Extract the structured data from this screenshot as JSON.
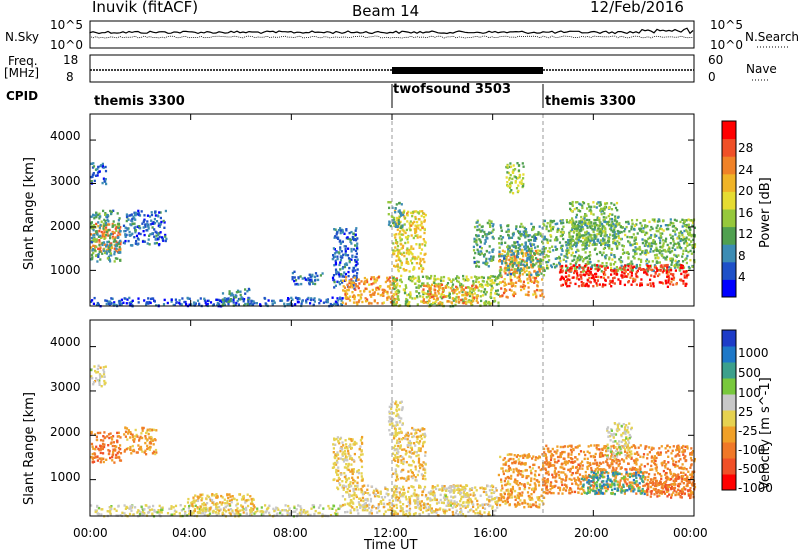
{
  "header": {
    "station": "Inuvik (fitACF)",
    "beam": "Beam 14",
    "date": "12/Feb/2016"
  },
  "top_panels": {
    "nsky_label": "N.Sky",
    "nsky_ticks": [
      "10^5",
      "10^0"
    ],
    "nsearch_label": "N.Search",
    "nsearch_ticks": [
      "10^5",
      "10^0"
    ],
    "freq_label_line1": "Freq.",
    "freq_label_line2": "[MHz]",
    "freq_ticks": [
      "18",
      "8"
    ],
    "nave_label": "Nave",
    "nave_ticks": [
      "60",
      "0"
    ],
    "cpid_label": "CPID"
  },
  "cpid_segments": [
    {
      "name": "themis 3300",
      "start_hour": 0,
      "end_hour": 12
    },
    {
      "name": "twofsound 3503",
      "start_hour": 12,
      "end_hour": 18
    },
    {
      "name": "themis 3300",
      "start_hour": 18,
      "end_hour": 24
    }
  ],
  "colors": {
    "power_scale": [
      "#0000ff",
      "#1e50c8",
      "#3c8cb4",
      "#50a050",
      "#96c83c",
      "#e6dc32",
      "#f0b428",
      "#f08228",
      "#f05028",
      "#ff0000"
    ],
    "velocity_scale": [
      "#1e3cc8",
      "#1e78c8",
      "#3ca08c",
      "#78c83c",
      "#c8c8c8",
      "#e6d250",
      "#f0a028",
      "#f07828",
      "#f05028",
      "#ff0000"
    ]
  },
  "chart_data": [
    {
      "type": "heatmap",
      "title": "Power",
      "ylabel": "Slant Range [km]",
      "xlabel": "",
      "x_range_hours": [
        0,
        24
      ],
      "ylim": [
        180,
        4600
      ],
      "y_ticks": [
        "1000",
        "2000",
        "3000",
        "4000"
      ],
      "colorbar_label": "Power [dB]",
      "colorbar_ticks": [
        "4",
        "8",
        "12",
        "16",
        "20",
        "24",
        "28"
      ],
      "colorbar_range": [
        0,
        31
      ],
      "regions": [
        {
          "t0": 0.0,
          "t1": 1.2,
          "r0": 1450,
          "r1": 2100,
          "level": 24
        },
        {
          "t0": 0.0,
          "t1": 1.2,
          "r0": 1200,
          "r1": 2400,
          "level": 10
        },
        {
          "t0": 0.0,
          "t1": 0.6,
          "r0": 3000,
          "r1": 3500,
          "level": 6
        },
        {
          "t0": 1.3,
          "t1": 3.0,
          "r0": 1600,
          "r1": 2400,
          "level": 6
        },
        {
          "t0": 0.0,
          "t1": 10.0,
          "r0": 200,
          "r1": 400,
          "level": 5
        },
        {
          "t0": 5.2,
          "t1": 6.3,
          "r0": 200,
          "r1": 600,
          "level": 8
        },
        {
          "t0": 8.0,
          "t1": 9.2,
          "r0": 700,
          "r1": 1000,
          "level": 6
        },
        {
          "t0": 9.6,
          "t1": 10.6,
          "r0": 600,
          "r1": 2000,
          "level": 6
        },
        {
          "t0": 10.0,
          "t1": 12.2,
          "r0": 250,
          "r1": 900,
          "level": 22
        },
        {
          "t0": 12.0,
          "t1": 13.3,
          "r0": 1000,
          "r1": 2400,
          "level": 18
        },
        {
          "t0": 11.8,
          "t1": 12.4,
          "r0": 2000,
          "r1": 2600,
          "level": 10
        },
        {
          "t0": 12.0,
          "t1": 16.2,
          "r0": 200,
          "r1": 900,
          "level": 14
        },
        {
          "t0": 13.2,
          "t1": 15.4,
          "r0": 250,
          "r1": 700,
          "level": 22
        },
        {
          "t0": 15.2,
          "t1": 16.0,
          "r0": 1100,
          "r1": 2200,
          "level": 10
        },
        {
          "t0": 16.2,
          "t1": 18.0,
          "r0": 400,
          "r1": 1500,
          "level": 22
        },
        {
          "t0": 16.2,
          "t1": 18.0,
          "r0": 900,
          "r1": 2100,
          "level": 10
        },
        {
          "t0": 18.0,
          "t1": 24.0,
          "r0": 1000,
          "r1": 2200,
          "level": 12
        },
        {
          "t0": 18.6,
          "t1": 23.8,
          "r0": 650,
          "r1": 1150,
          "level": 28
        },
        {
          "t0": 19.0,
          "t1": 21.0,
          "r0": 1600,
          "r1": 2600,
          "level": 12
        },
        {
          "t0": 16.5,
          "t1": 17.2,
          "r0": 2800,
          "r1": 3500,
          "level": 14
        }
      ]
    },
    {
      "type": "heatmap",
      "title": "Velocity",
      "ylabel": "Slant Range [km]",
      "xlabel": "Time UT",
      "x_range_hours": [
        0,
        24
      ],
      "x_ticks": [
        "00:00",
        "04:00",
        "08:00",
        "12:00",
        "16:00",
        "20:00",
        "00:00"
      ],
      "ylim": [
        180,
        4600
      ],
      "y_ticks": [
        "1000",
        "2000",
        "3000",
        "4000"
      ],
      "colorbar_label": "Velocity [m s^-1]",
      "colorbar_ticks": [
        "1000",
        "500",
        "100",
        "25",
        "-25",
        "-100",
        "-500",
        "-1000"
      ],
      "colorbar_range": [
        -1200,
        1200
      ],
      "regions": [
        {
          "t0": 0.0,
          "t1": 1.2,
          "r0": 1400,
          "r1": 2100,
          "level": -600
        },
        {
          "t0": 0.0,
          "t1": 0.6,
          "r0": 3100,
          "r1": 3600,
          "level": 0
        },
        {
          "t0": 1.3,
          "t1": 2.6,
          "r0": 1600,
          "r1": 2200,
          "level": -400
        },
        {
          "t0": 0.0,
          "t1": 10.0,
          "r0": 200,
          "r1": 450,
          "level": 50
        },
        {
          "t0": 3.8,
          "t1": 6.5,
          "r0": 250,
          "r1": 700,
          "level": -200
        },
        {
          "t0": 9.6,
          "t1": 10.8,
          "r0": 800,
          "r1": 2000,
          "level": -150
        },
        {
          "t0": 10.0,
          "t1": 12.2,
          "r0": 250,
          "r1": 900,
          "level": -80
        },
        {
          "t0": 12.0,
          "t1": 13.3,
          "r0": 1000,
          "r1": 2200,
          "level": -150
        },
        {
          "t0": 11.8,
          "t1": 12.4,
          "r0": 2000,
          "r1": 2800,
          "level": 0
        },
        {
          "t0": 12.0,
          "t1": 16.2,
          "r0": 200,
          "r1": 900,
          "level": -100
        },
        {
          "t0": 14.0,
          "t1": 15.0,
          "r0": 400,
          "r1": 900,
          "level": 0
        },
        {
          "t0": 16.2,
          "t1": 18.0,
          "r0": 400,
          "r1": 1600,
          "level": -400
        },
        {
          "t0": 18.0,
          "t1": 24.0,
          "r0": 700,
          "r1": 1800,
          "level": -500
        },
        {
          "t0": 19.5,
          "t1": 22.0,
          "r0": 700,
          "r1": 1200,
          "level": 600
        },
        {
          "t0": 22.0,
          "t1": 24.0,
          "r0": 600,
          "r1": 1100,
          "level": -600
        },
        {
          "t0": 20.5,
          "t1": 21.5,
          "r0": 1500,
          "r1": 2300,
          "level": 80
        }
      ]
    }
  ]
}
